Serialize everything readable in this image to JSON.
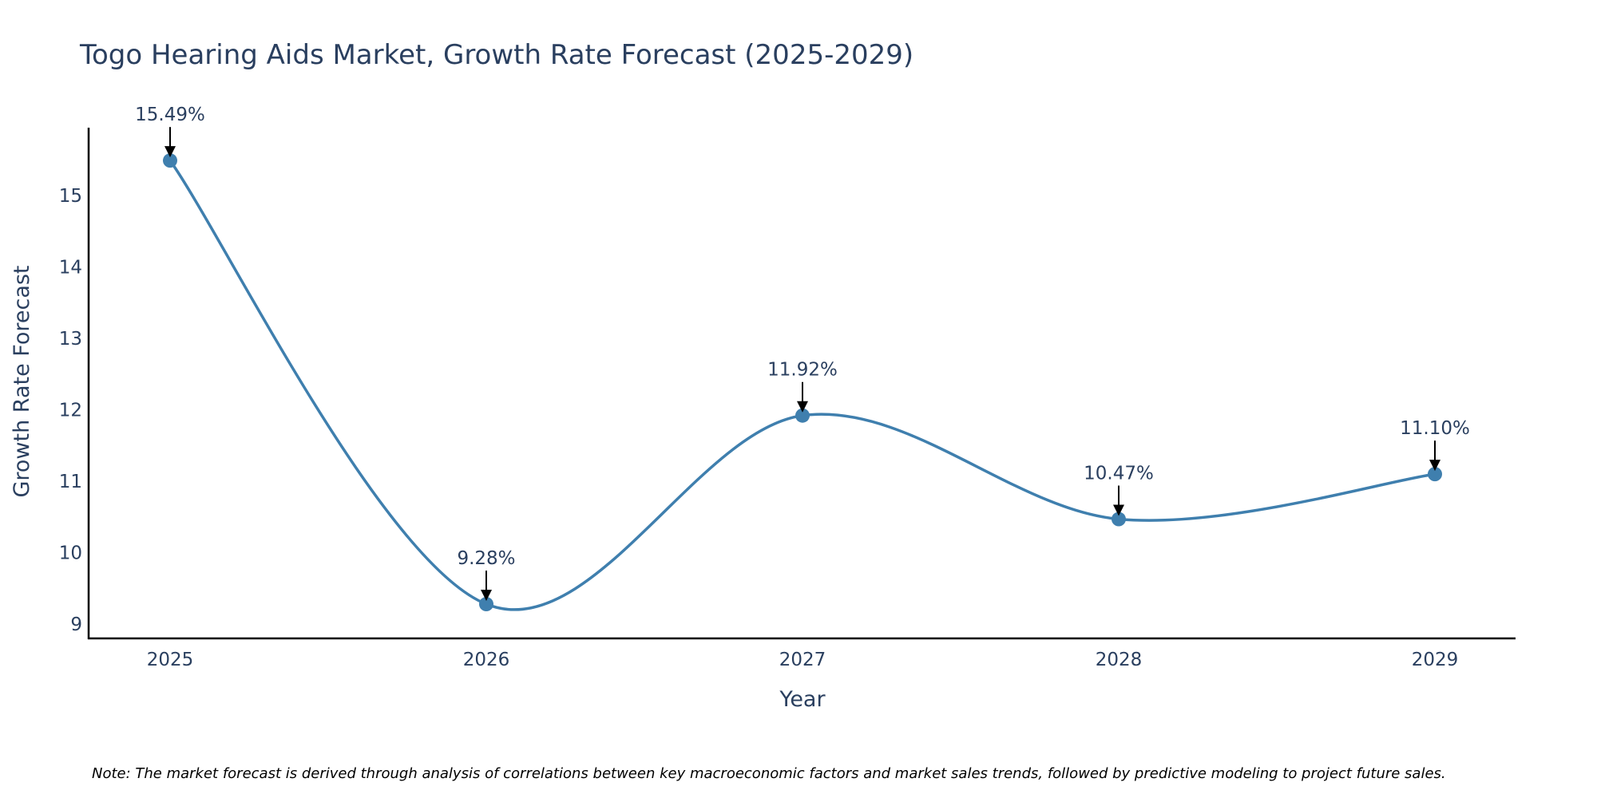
{
  "chart_data": {
    "type": "line",
    "title": "Togo Hearing Aids Market, Growth Rate Forecast (2025-2029)",
    "xlabel": "Year",
    "ylabel": "Growth Rate Forecast",
    "categories": [
      "2025",
      "2026",
      "2027",
      "2028",
      "2029"
    ],
    "values": [
      15.49,
      9.28,
      11.92,
      10.47,
      11.1
    ],
    "data_labels": [
      "15.49%",
      "9.28%",
      "11.92%",
      "10.47%",
      "11.10%"
    ],
    "yticks": [
      9,
      10,
      11,
      12,
      13,
      14,
      15
    ],
    "ylim": [
      8.8,
      15.95
    ],
    "line_shape": "spline",
    "line_color": "#3f7fae",
    "marker_color": "#3f7fae",
    "grid": false,
    "note": "Note: The market forecast is derived through analysis of correlations between key macroeconomic factors and market sales trends, followed by predictive modeling to project future sales."
  }
}
